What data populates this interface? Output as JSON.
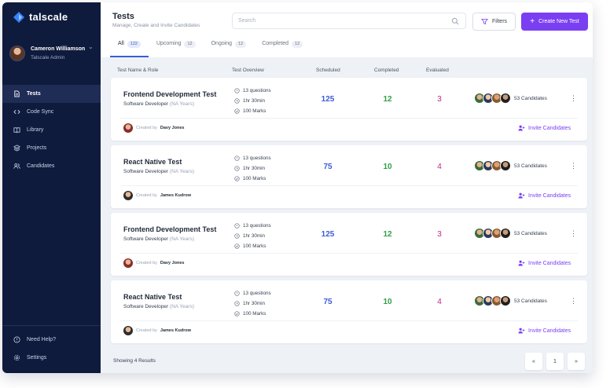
{
  "brand": {
    "name": "talscale",
    "color": "#3b82f6"
  },
  "user": {
    "name": "Cameron Williamson",
    "role": "Talscale Admin"
  },
  "sidebar": {
    "items": [
      {
        "label": "Tests",
        "icon": "document-icon",
        "active": true
      },
      {
        "label": "Code Sync",
        "icon": "code-icon"
      },
      {
        "label": "Library",
        "icon": "book-icon"
      },
      {
        "label": "Projects",
        "icon": "layers-icon"
      },
      {
        "label": "Candidates",
        "icon": "users-icon"
      }
    ],
    "bottom": [
      {
        "label": "Need Help?",
        "icon": "help-icon"
      },
      {
        "label": "Settings",
        "icon": "gear-icon"
      }
    ]
  },
  "header": {
    "title": "Tests",
    "subtitle": "Manage, Create and Invite Candidates",
    "search_placeholder": "Search",
    "filters_label": "Filters",
    "create_label": "Create New Test"
  },
  "tabs": [
    {
      "label": "All",
      "count": "122",
      "active": true
    },
    {
      "label": "Upcoming",
      "count": "12"
    },
    {
      "label": "Ongoing",
      "count": "12"
    },
    {
      "label": "Completed",
      "count": "12"
    }
  ],
  "columns": {
    "name": "Test Name & Role",
    "overview": "Test Overview",
    "scheduled": "Scheduled",
    "completed": "Completed",
    "evaluated": "Evaluated"
  },
  "tests": [
    {
      "title": "Frontend Development Test",
      "role": "Software Developer",
      "years": "(NA Years)",
      "questions": "13 questions",
      "duration": "1hr 30min",
      "marks": "100 Marks",
      "scheduled": "125",
      "completed": "12",
      "evaluated": "3",
      "candidates": "53 Candidates",
      "created_by_label": "Created by",
      "creator": "Davy Jones",
      "invite_label": "Invite Candidates"
    },
    {
      "title": "React Native Test",
      "role": "Software Developer",
      "years": "(NA Years)",
      "questions": "13 questions",
      "duration": "1hr 30min",
      "marks": "100 Marks",
      "scheduled": "75",
      "completed": "10",
      "evaluated": "4",
      "candidates": "53 Candidates",
      "created_by_label": "Created by",
      "creator": "James Kudrow",
      "invite_label": "Invite Candidates"
    },
    {
      "title": "Frontend Development Test",
      "role": "Software Developer",
      "years": "(NA Years)",
      "questions": "13 questions",
      "duration": "1hr 30min",
      "marks": "100 Marks",
      "scheduled": "125",
      "completed": "12",
      "evaluated": "3",
      "candidates": "53 Candidates",
      "created_by_label": "Created by",
      "creator": "Davy Jones",
      "invite_label": "Invite Candidates"
    },
    {
      "title": "React Native Test",
      "role": "Software Developer",
      "years": "(NA Years)",
      "questions": "13 questions",
      "duration": "1hr 30min",
      "marks": "100 Marks",
      "scheduled": "75",
      "completed": "10",
      "evaluated": "4",
      "candidates": "53 Candidates",
      "created_by_label": "Created by",
      "creator": "James Kudrow",
      "invite_label": "Invite Candidates"
    }
  ],
  "footer": {
    "showing": "Showing 4 Results",
    "prev": "«",
    "page": "1",
    "next": "»"
  },
  "colors": {
    "accent": "#7b3ff2",
    "sidebar": "#0f1b3d",
    "scheduled": "#3b5bdb",
    "completed": "#2f9e44",
    "evaluated": "#c2258e"
  }
}
